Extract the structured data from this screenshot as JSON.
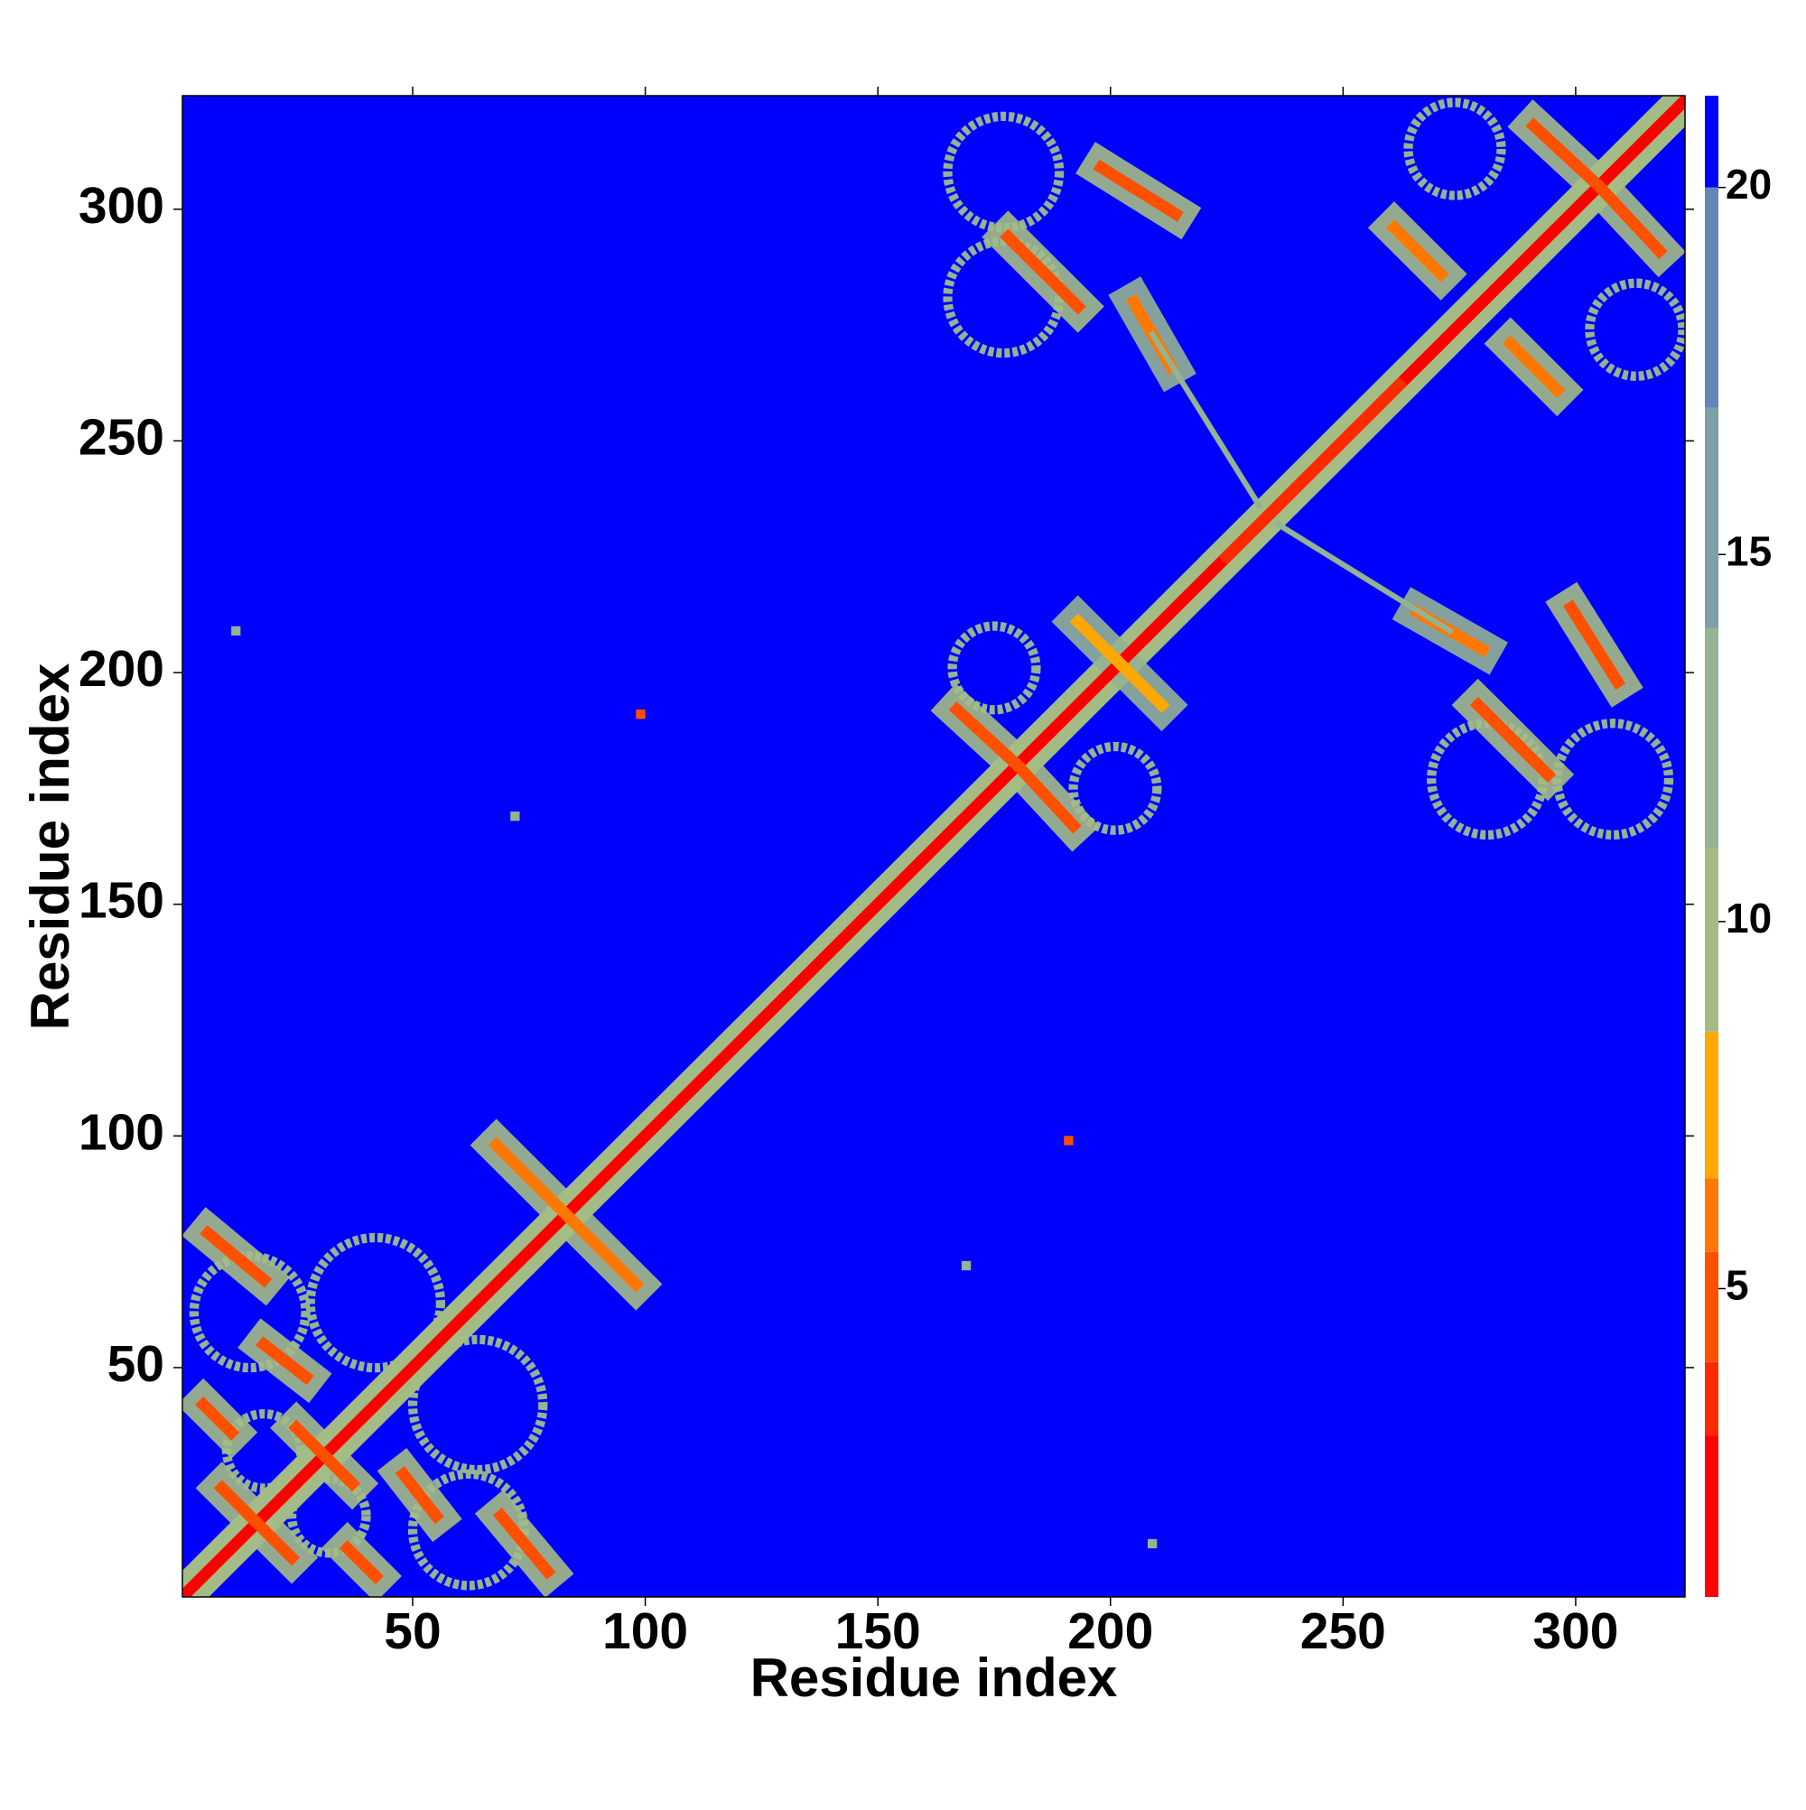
{
  "chart_data": {
    "type": "heatmap",
    "x_label": "Residue index",
    "y_label": "Residue index",
    "xlim": [
      0.5,
      323.5
    ],
    "ylim": [
      0.5,
      324.5
    ],
    "xticks": [
      50,
      100,
      150,
      200,
      250,
      300
    ],
    "yticks": [
      50,
      100,
      150,
      200,
      250,
      300
    ],
    "symmetric": true,
    "background_value": 21,
    "zlim": [
      0.8,
      21.25
    ],
    "zticks": [
      5,
      10,
      15,
      20
    ],
    "bands": [
      {
        "from": 0.8,
        "to": 3,
        "color": "#ff0000"
      },
      {
        "from": 3,
        "to": 4,
        "color": "#ff2a00"
      },
      {
        "from": 4,
        "to": 5.5,
        "color": "#ff5000"
      },
      {
        "from": 5.5,
        "to": 6.5,
        "color": "#ff7800"
      },
      {
        "from": 6.5,
        "to": 8.5,
        "color": "#ffa800"
      },
      {
        "from": 8.5,
        "to": 11,
        "color": "#a4bc84"
      },
      {
        "from": 11,
        "to": 14,
        "color": "#93b392"
      },
      {
        "from": 14,
        "to": 17,
        "color": "#7e9fa6"
      },
      {
        "from": 17,
        "to": 20,
        "color": "#6287b6"
      },
      {
        "from": 20,
        "to": 21.25,
        "color": "#0000ff"
      }
    ],
    "strands": [
      {
        "x": [
          1,
          323
        ],
        "y": [
          1,
          323
        ],
        "value": 2,
        "halo": 9
      },
      {
        "x": [
          225,
          262
        ],
        "y": [
          225,
          262
        ],
        "value": 4,
        "halo": 10
      },
      {
        "x": [
          68,
          83
        ],
        "y": [
          98,
          83
        ],
        "value": 6,
        "halo": 11
      },
      {
        "x": [
          6,
          18
        ],
        "y": [
          79,
          69
        ],
        "value": 5,
        "halo": 11
      },
      {
        "x": [
          18,
          27
        ],
        "y": [
          55,
          48
        ],
        "value": 5,
        "halo": 11
      },
      {
        "x": [
          5,
          11
        ],
        "y": [
          42,
          36
        ],
        "value": 5,
        "halo": 11
      },
      {
        "x": [
          25,
          31
        ],
        "y": [
          37,
          31
        ],
        "value": 5,
        "halo": 11
      },
      {
        "x": [
          9,
          16
        ],
        "y": [
          24,
          17
        ],
        "value": 5,
        "halo": 11
      },
      {
        "x": [
          167,
          180
        ],
        "y": [
          192,
          180
        ],
        "value": 5,
        "halo": 11
      },
      {
        "x": [
          193,
          202
        ],
        "y": [
          211,
          202
        ],
        "value": 7,
        "halo": 12
      },
      {
        "x": [
          178,
          193
        ],
        "y": [
          294,
          279
        ],
        "value": 5,
        "halo": 11
      },
      {
        "x": [
          198,
          214
        ],
        "y": [
          309,
          299
        ],
        "value": 5,
        "halo": 11
      },
      {
        "x": [
          205,
          213
        ],
        "y": [
          280,
          266
        ],
        "value": 6,
        "halo": 12
      },
      {
        "x": [
          261,
          271
        ],
        "y": [
          296,
          286
        ],
        "value": 6,
        "halo": 11
      },
      {
        "x": [
          291,
          305
        ],
        "y": [
          318,
          305
        ],
        "value": 5,
        "halo": 11
      },
      {
        "x": [
          209,
          232
        ],
        "y": [
          273,
          236
        ],
        "value": 13
      }
    ],
    "rings": [
      {
        "x": 15,
        "y": 62,
        "r": 12,
        "value": 12
      },
      {
        "x": 42,
        "y": 64,
        "r": 14,
        "value": 12
      },
      {
        "x": 18,
        "y": 32,
        "r": 8,
        "value": 12
      },
      {
        "x": 177,
        "y": 308,
        "r": 12,
        "value": 12
      },
      {
        "x": 177,
        "y": 281,
        "r": 12,
        "value": 12
      },
      {
        "x": 274,
        "y": 313,
        "r": 10,
        "value": 12
      },
      {
        "x": 175,
        "y": 201,
        "r": 9,
        "value": 12
      }
    ],
    "dots": [
      {
        "x": 99,
        "y": 191,
        "value": 5
      },
      {
        "x": 72,
        "y": 169,
        "value": 12
      },
      {
        "x": 12,
        "y": 209,
        "value": 13
      }
    ]
  }
}
